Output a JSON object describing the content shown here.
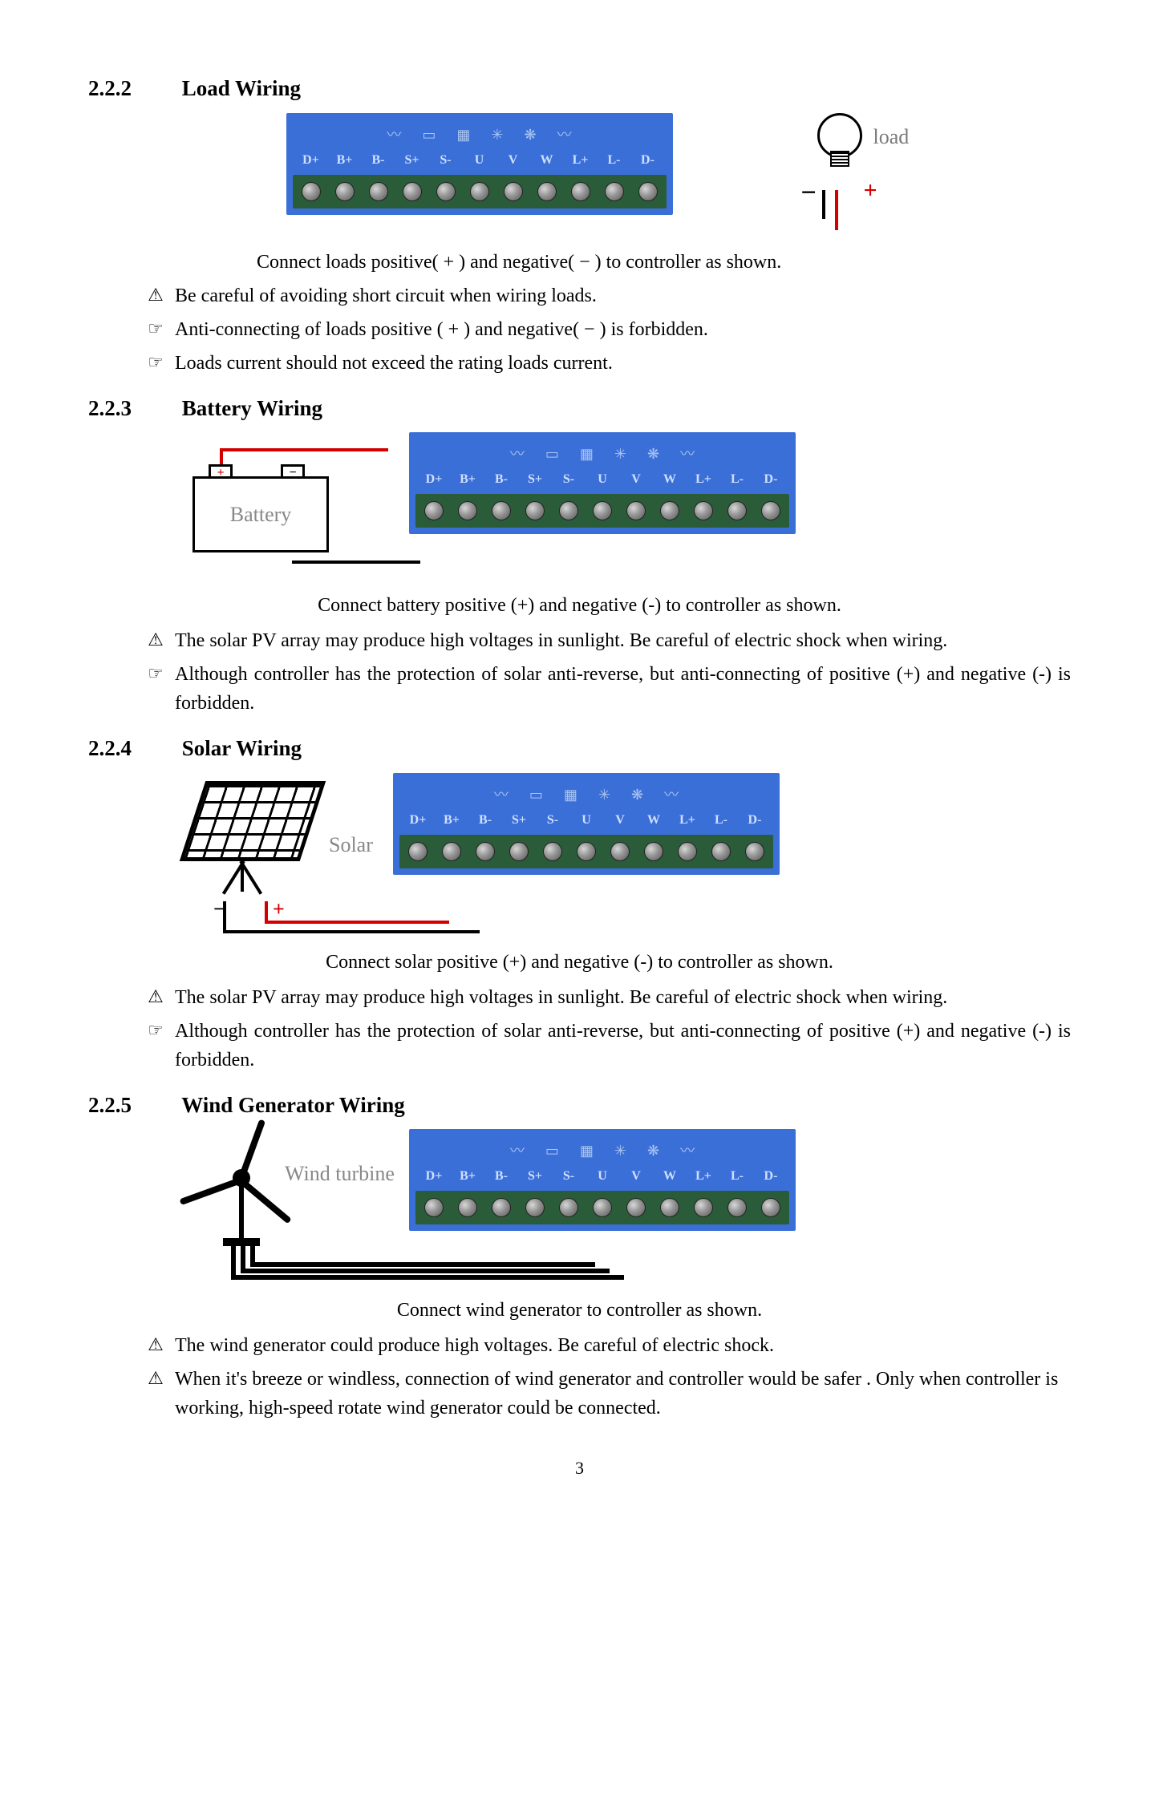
{
  "page_number": "3",
  "terminals": [
    "D+",
    "B+",
    "B-",
    "S+",
    "S-",
    "U",
    "V",
    "W",
    "L+",
    "L-",
    "D-"
  ],
  "icons": [
    "〰",
    "▭",
    "▦",
    "✳",
    "❋",
    "〰"
  ],
  "colors": {
    "strip_bg": "#3b6fd8",
    "screw_bg": "#2a5c3a",
    "red": "#d40000",
    "black": "#000000",
    "grey_label": "#888888"
  },
  "sections": {
    "load": {
      "num": "2.2.2",
      "title": "Load Wiring",
      "label": "load",
      "minus": "−",
      "plus": "+",
      "caption": "Connect loads positive( + ) and negative( − ) to controller as shown.",
      "notes": [
        {
          "icon": "⚠",
          "text": "Be careful of avoiding short circuit when wiring loads."
        },
        {
          "icon": "☞",
          "text": "Anti-connecting of loads positive ( + ) and negative( − ) is forbidden."
        },
        {
          "icon": "☞",
          "text": "Loads current should not exceed the rating loads current."
        }
      ]
    },
    "battery": {
      "num": "2.2.3",
      "title": "Battery Wiring",
      "label": "Battery",
      "caption": "Connect battery positive (+) and negative (-) to controller as shown.",
      "notes": [
        {
          "icon": "⚠",
          "text": "The solar PV array may produce high voltages in sunlight. Be careful of electric shock when wiring."
        },
        {
          "icon": "☞",
          "text": "Although controller has the protection of solar anti-reverse, but anti-connecting of positive (+) and negative (-) is forbidden."
        }
      ]
    },
    "solar": {
      "num": "2.2.4",
      "title": "Solar Wiring",
      "label": "Solar",
      "minus": "−",
      "plus": "+",
      "caption": "Connect solar positive (+) and negative (-) to controller as shown.",
      "notes": [
        {
          "icon": "⚠",
          "text": "The solar PV array may produce high voltages in sunlight. Be careful of electric shock when wiring."
        },
        {
          "icon": "☞",
          "text": "Although controller has the protection of solar anti-reverse, but anti-connecting of positive (+) and negative (-) is forbidden."
        }
      ]
    },
    "wind": {
      "num": "2.2.5",
      "title": "Wind Generator Wiring",
      "label": "Wind turbine",
      "caption": "Connect wind generator to controller as shown.",
      "notes": [
        {
          "icon": "⚠",
          "text": "The wind generator could produce high voltages. Be careful of electric shock."
        },
        {
          "icon": "⚠",
          "text": "When it's breeze or windless, connection of wind generator and controller would be safer . Only when controller is working, high-speed rotate wind generator could be connected."
        }
      ]
    }
  }
}
